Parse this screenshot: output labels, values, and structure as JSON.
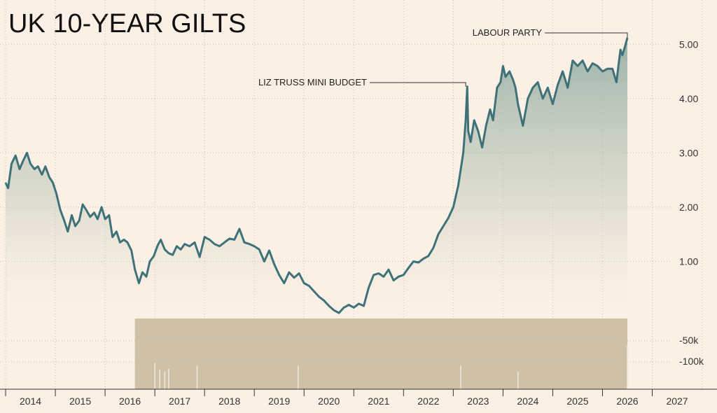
{
  "chart_data": {
    "type": "line",
    "title": "UK 10-YEAR GILTS",
    "xlabel": "",
    "ylabel": "",
    "x_ticks": [
      "2014",
      "2015",
      "2016",
      "2017",
      "2018",
      "2019",
      "2020",
      "2021",
      "2022",
      "2023",
      "2024",
      "2025",
      "2026",
      "2027"
    ],
    "y_ticks": [
      "1.00",
      "2.00",
      "3.00",
      "4.00",
      "5.00"
    ],
    "ylim": [
      0,
      5.3
    ],
    "volume_ticks": [
      "-50k",
      "-100k"
    ],
    "grid": true,
    "colors": {
      "line": "#3e7278",
      "volume": "#cfc0a8",
      "background": "#fbf0e5",
      "grid": "#c8bfb4"
    },
    "annotations": [
      {
        "label": "LIZ TRUSS MINI BUDGET",
        "x": 2022.75,
        "y": 4.22
      },
      {
        "label": "LABOUR PARTY",
        "x": 2026.0,
        "y": 5.12
      }
    ],
    "series": [
      {
        "x": [
          2013.5,
          2013.55,
          2013.62,
          2013.7,
          2013.78,
          2013.85,
          2013.93,
          2014.0,
          2014.08,
          2014.15,
          2014.23,
          2014.3,
          2014.38,
          2014.45,
          2014.52,
          2014.6,
          2014.68,
          2014.75,
          2014.83,
          2014.9,
          2014.98,
          2015.05,
          2015.12,
          2015.2,
          2015.28,
          2015.35,
          2015.43,
          2015.5,
          2015.58,
          2015.65,
          2015.73,
          2015.8,
          2015.88,
          2015.95,
          2016.03,
          2016.1,
          2016.18,
          2016.25,
          2016.33,
          2016.4,
          2016.48,
          2016.52,
          2016.56,
          2016.62,
          2016.7,
          2016.78,
          2016.86,
          2016.94,
          2017.02,
          2017.1,
          2017.2,
          2017.3,
          2017.4,
          2017.5,
          2017.6,
          2017.7,
          2017.8,
          2017.9,
          2018.0,
          2018.1,
          2018.2,
          2018.3,
          2018.4,
          2018.5,
          2018.6,
          2018.7,
          2018.8,
          2018.9,
          2019.0,
          2019.1,
          2019.2,
          2019.3,
          2019.4,
          2019.5,
          2019.6,
          2019.7,
          2019.8,
          2019.9,
          2020.0,
          2020.1,
          2020.2,
          2020.3,
          2020.4,
          2020.5,
          2020.6,
          2020.7,
          2020.8,
          2020.9,
          2021.0,
          2021.1,
          2021.2,
          2021.3,
          2021.4,
          2021.5,
          2021.6,
          2021.7,
          2021.8,
          2021.9,
          2022.0,
          2022.1,
          2022.2,
          2022.3,
          2022.4,
          2022.5,
          2022.6,
          2022.7,
          2022.75,
          2022.78,
          2022.8,
          2022.85,
          2022.92,
          2023.0,
          2023.08,
          2023.16,
          2023.24,
          2023.3,
          2023.38,
          2023.45,
          2023.5,
          2023.55,
          2023.63,
          2023.7,
          2023.75,
          2023.8,
          2023.9,
          2024.0,
          2024.1,
          2024.2,
          2024.3,
          2024.4,
          2024.5,
          2024.6,
          2024.7,
          2024.8,
          2024.9,
          2025.0,
          2025.1,
          2025.2,
          2025.3,
          2025.4,
          2025.5,
          2025.6,
          2025.7,
          2025.78,
          2025.82,
          2025.86,
          2025.9,
          2025.95,
          2026.0
        ],
        "values": [
          2.45,
          2.35,
          2.8,
          2.95,
          2.7,
          2.85,
          3.0,
          2.8,
          2.7,
          2.75,
          2.6,
          2.75,
          2.55,
          2.45,
          2.25,
          1.95,
          1.75,
          1.55,
          1.85,
          1.65,
          1.75,
          2.05,
          1.95,
          1.82,
          1.9,
          1.78,
          2.0,
          1.78,
          1.85,
          1.45,
          1.55,
          1.35,
          1.4,
          1.35,
          1.2,
          0.85,
          0.6,
          0.8,
          0.72,
          1.0,
          1.1,
          1.2,
          1.3,
          1.4,
          1.22,
          1.15,
          1.12,
          1.28,
          1.22,
          1.32,
          1.28,
          1.35,
          1.08,
          1.45,
          1.4,
          1.32,
          1.28,
          1.35,
          1.42,
          1.4,
          1.6,
          1.35,
          1.32,
          1.28,
          1.22,
          1.0,
          1.2,
          0.95,
          0.75,
          0.6,
          0.8,
          0.7,
          0.78,
          0.6,
          0.55,
          0.45,
          0.35,
          0.28,
          0.18,
          0.1,
          0.05,
          0.15,
          0.2,
          0.15,
          0.22,
          0.18,
          0.52,
          0.75,
          0.78,
          0.72,
          0.85,
          0.65,
          0.72,
          0.75,
          0.88,
          1.0,
          0.98,
          1.05,
          1.1,
          1.25,
          1.5,
          1.65,
          1.8,
          2.0,
          2.4,
          3.0,
          3.6,
          4.22,
          3.4,
          3.2,
          3.6,
          3.4,
          3.1,
          3.5,
          3.8,
          3.6,
          4.2,
          4.3,
          4.6,
          4.4,
          4.5,
          4.35,
          4.2,
          3.9,
          3.5,
          4.0,
          4.2,
          4.3,
          4.0,
          4.2,
          3.9,
          4.25,
          4.5,
          4.2,
          4.7,
          4.6,
          4.7,
          4.5,
          4.65,
          4.6,
          4.5,
          4.55,
          4.55,
          4.3,
          4.6,
          4.9,
          4.8,
          4.95,
          5.12
        ]
      }
    ],
    "volume": {
      "x_start": 2016.1,
      "x_end": 2026.0,
      "spikes": [
        {
          "x": 2016.5,
          "value": 104000
        },
        {
          "x": 2016.6,
          "value": 120000
        },
        {
          "x": 2016.7,
          "value": 125000
        },
        {
          "x": 2016.78,
          "value": 118000
        },
        {
          "x": 2017.35,
          "value": 110000
        },
        {
          "x": 2019.38,
          "value": 110000
        },
        {
          "x": 2022.65,
          "value": 110000
        },
        {
          "x": 2023.8,
          "value": 125000
        },
        {
          "x": 2026.0,
          "value": 65000
        }
      ]
    }
  }
}
